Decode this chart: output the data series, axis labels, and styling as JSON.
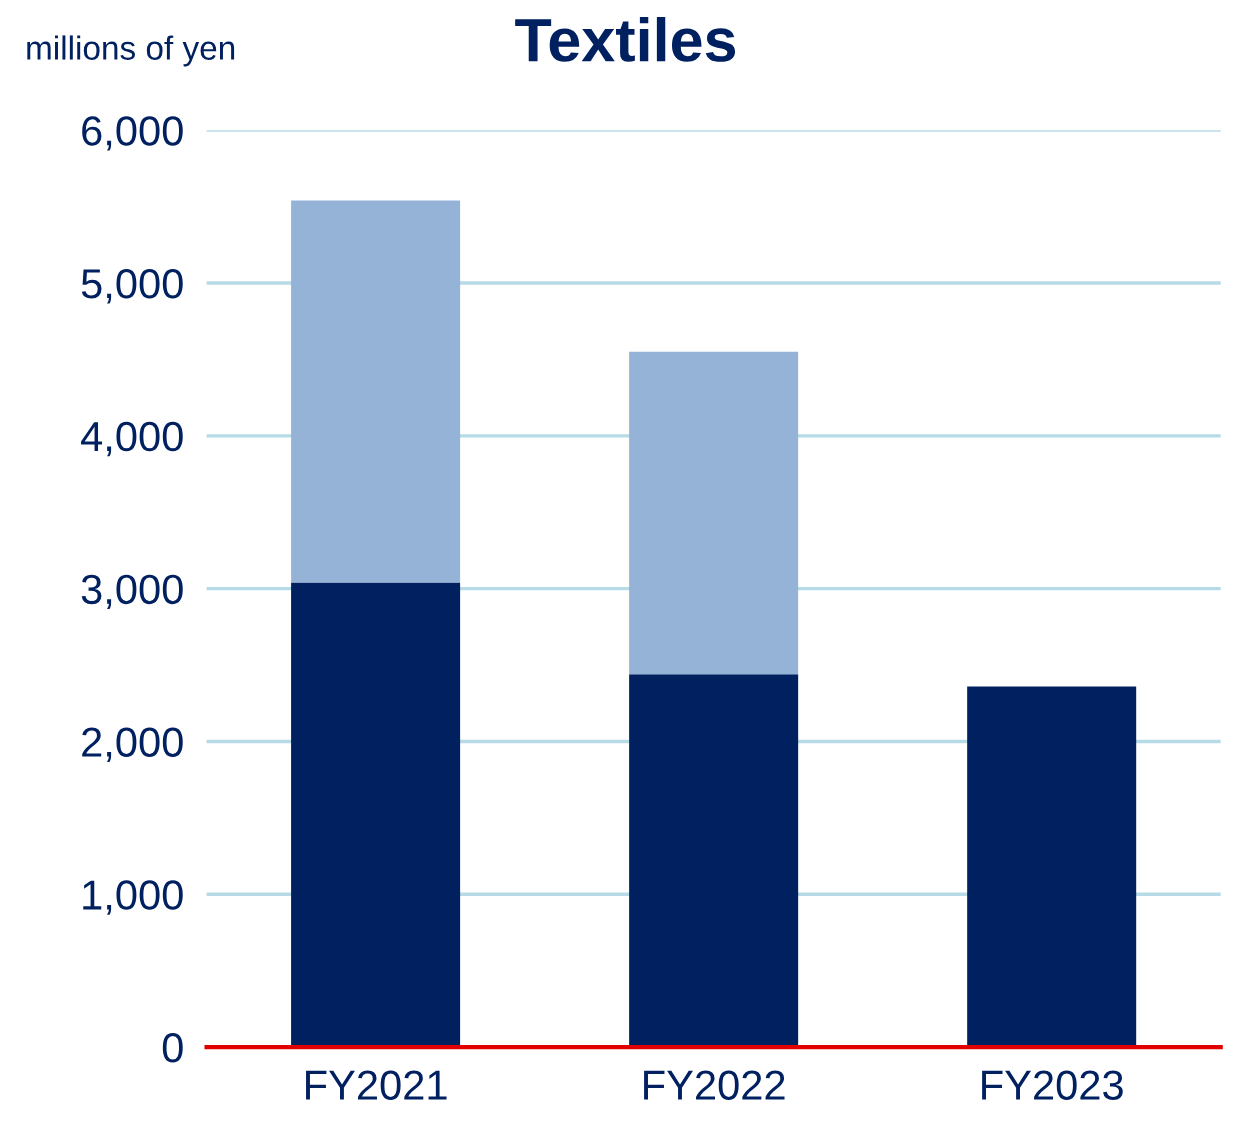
{
  "chart_data": {
    "type": "bar",
    "title": "Textiles",
    "ylabel": "millions of yen",
    "categories": [
      "FY2021",
      "FY2022",
      "FY2023"
    ],
    "stacked": true,
    "series": [
      {
        "color": "#002060",
        "values": [
          3040,
          2440,
          2360
        ]
      },
      {
        "color": "#95b3d7",
        "values": [
          2500,
          2110,
          null
        ]
      }
    ],
    "ylim": [
      0,
      6000
    ],
    "yticks": [
      {
        "value": 0,
        "label": "0"
      },
      {
        "value": 1000,
        "label": "1,000"
      },
      {
        "value": 2000,
        "label": "2,000"
      },
      {
        "value": 3000,
        "label": "3,000"
      },
      {
        "value": 4000,
        "label": "4,000"
      },
      {
        "value": 5000,
        "label": "5,000"
      },
      {
        "value": 6000,
        "label": "6,000"
      }
    ],
    "grid": "y"
  }
}
